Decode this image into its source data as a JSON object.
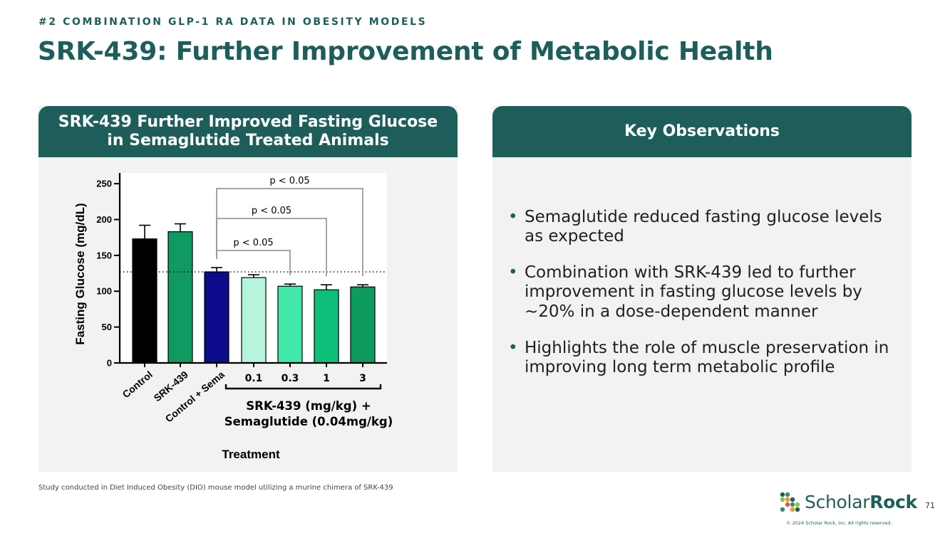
{
  "slide": {
    "eyebrow": "#2 COMBINATION GLP-1 RA DATA IN OBESITY MODELS",
    "title": "SRK-439: Further Improvement of Metabolic Health",
    "footnote": "Study conducted in Diet Induced Obesity (DIO) mouse model utilizing a murine chimera of SRK-439",
    "page_number": "71",
    "logo": {
      "text_light": "Scholar",
      "text_bold": "Rock",
      "copyright": "© 2024 Scholar Rock, Inc. All rights reserved."
    },
    "colors": {
      "brand": "#1e5e5a",
      "panel_bg": "#f2f2f2"
    }
  },
  "left_panel": {
    "header_line1": "SRK-439 Further Improved Fasting Glucose",
    "header_line2": "in Semaglutide Treated Animals"
  },
  "right_panel": {
    "header": "Key Observations",
    "bullets": [
      "Semaglutide reduced fasting glucose levels as expected",
      "Combination with SRK-439 led to further improvement in fasting glucose levels by ~20% in a dose-dependent manner",
      "Highlights the role of muscle preservation in improving long term metabolic profile"
    ]
  },
  "chart_data": {
    "type": "bar",
    "ylabel": "Fasting Glucose (mg/dL)",
    "xlabel": "Treatment",
    "ylim": [
      0,
      265
    ],
    "yticks": [
      0,
      50,
      100,
      150,
      200,
      250
    ],
    "categories": [
      "Control",
      "SRK-439",
      "Control + Sema",
      "0.1",
      "0.3",
      "1",
      "3"
    ],
    "values": [
      173,
      183,
      127,
      119,
      107,
      102,
      106
    ],
    "errors": [
      19,
      11,
      6,
      4,
      3,
      7,
      3
    ],
    "bar_colors": [
      "#000000",
      "#0e9a60",
      "#0b0b8c",
      "#b4f5dc",
      "#41e8a9",
      "#0cc07a",
      "#0d9a5e"
    ],
    "reference_line": 127,
    "group_label_line1": "SRK-439 (mg/kg) +",
    "group_label_line2": "Semaglutide (0.04mg/kg)",
    "comparisons": [
      {
        "from": 2,
        "to": 4,
        "label": "p < 0.05"
      },
      {
        "from": 2,
        "to": 5,
        "label": "p < 0.05"
      },
      {
        "from": 2,
        "to": 6,
        "label": "p < 0.05"
      }
    ]
  }
}
